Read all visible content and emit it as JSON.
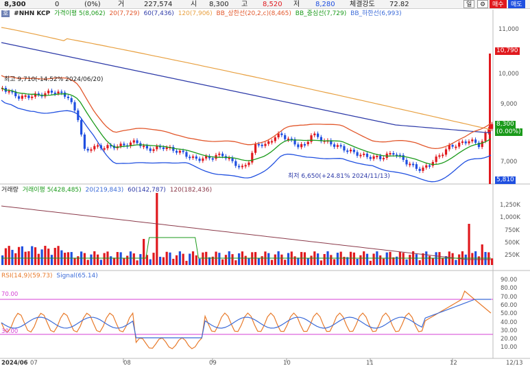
{
  "header": {
    "price": "8,300",
    "change": "0",
    "change_pct": "(0%)",
    "vol_label": "거",
    "volume": "227,574",
    "open_label": "시",
    "open": "8,300",
    "high_label": "고",
    "high": "8,520",
    "low_label": "저",
    "low": "8,280",
    "strength_label": "체결강도",
    "strength": "72.82",
    "period_button": "일",
    "settings_icon": "gear-icon",
    "buy_button": "매수",
    "sell_button": "매도"
  },
  "price_legend": {
    "indicator": "호",
    "symbol": "#NHN KCP",
    "ma5": "가격이평 5(8,062)",
    "ma20": "20(7,729)",
    "ma60": "60(7,436)",
    "ma120": "120(7,906)",
    "bb_upper": "BB_상한선(20,2,c)(8,465)",
    "bb_mid": "BB_중심선(7,729)",
    "bb_lower": "BB_하한선(6,993)"
  },
  "annotations": {
    "high": "최고 9,710(-14.52% 2024/06/20)",
    "low": "최저 6,650(+24.81% 2024/11/13)"
  },
  "price_axis": [
    "11,000",
    "10,000",
    "9,000",
    "7,000"
  ],
  "price_tags": {
    "high": "10,790",
    "current": "8,300",
    "current_pct": "(0.00%)",
    "low": "5,810"
  },
  "volume_legend": {
    "label": "거래량",
    "ma5": "거래이평 5(428,485)",
    "ma20": "20(219,843)",
    "ma60": "60(142,787)",
    "ma120": "120(182,436)"
  },
  "volume_axis": [
    "1,250K",
    "1,000K",
    "750K",
    "500K",
    "250K"
  ],
  "rsi_legend": {
    "rsi": "RSI(14,9)(59.73)",
    "signal": "Signal(65.14)",
    "level70": "70.00",
    "level30": "30.00"
  },
  "rsi_axis": [
    "90.00",
    "80.00",
    "70.00",
    "60.00",
    "50.00",
    "40.00",
    "30.00",
    "20.00",
    "10.00"
  ],
  "date_axis": {
    "start": "2024/06",
    "m07": "07",
    "m08": "08",
    "m09": "09",
    "m10": "10",
    "m11": "11",
    "m12": "12",
    "end": "12/13"
  },
  "colors": {
    "up": "#e0191e",
    "down": "#1f4fe0",
    "ma5": "#1a9a1a",
    "ma20": "#e2572b",
    "ma60": "#2d3aa8",
    "ma120": "#e8a040",
    "rsi": "#e87a2a",
    "signal": "#3b6bd8"
  }
}
